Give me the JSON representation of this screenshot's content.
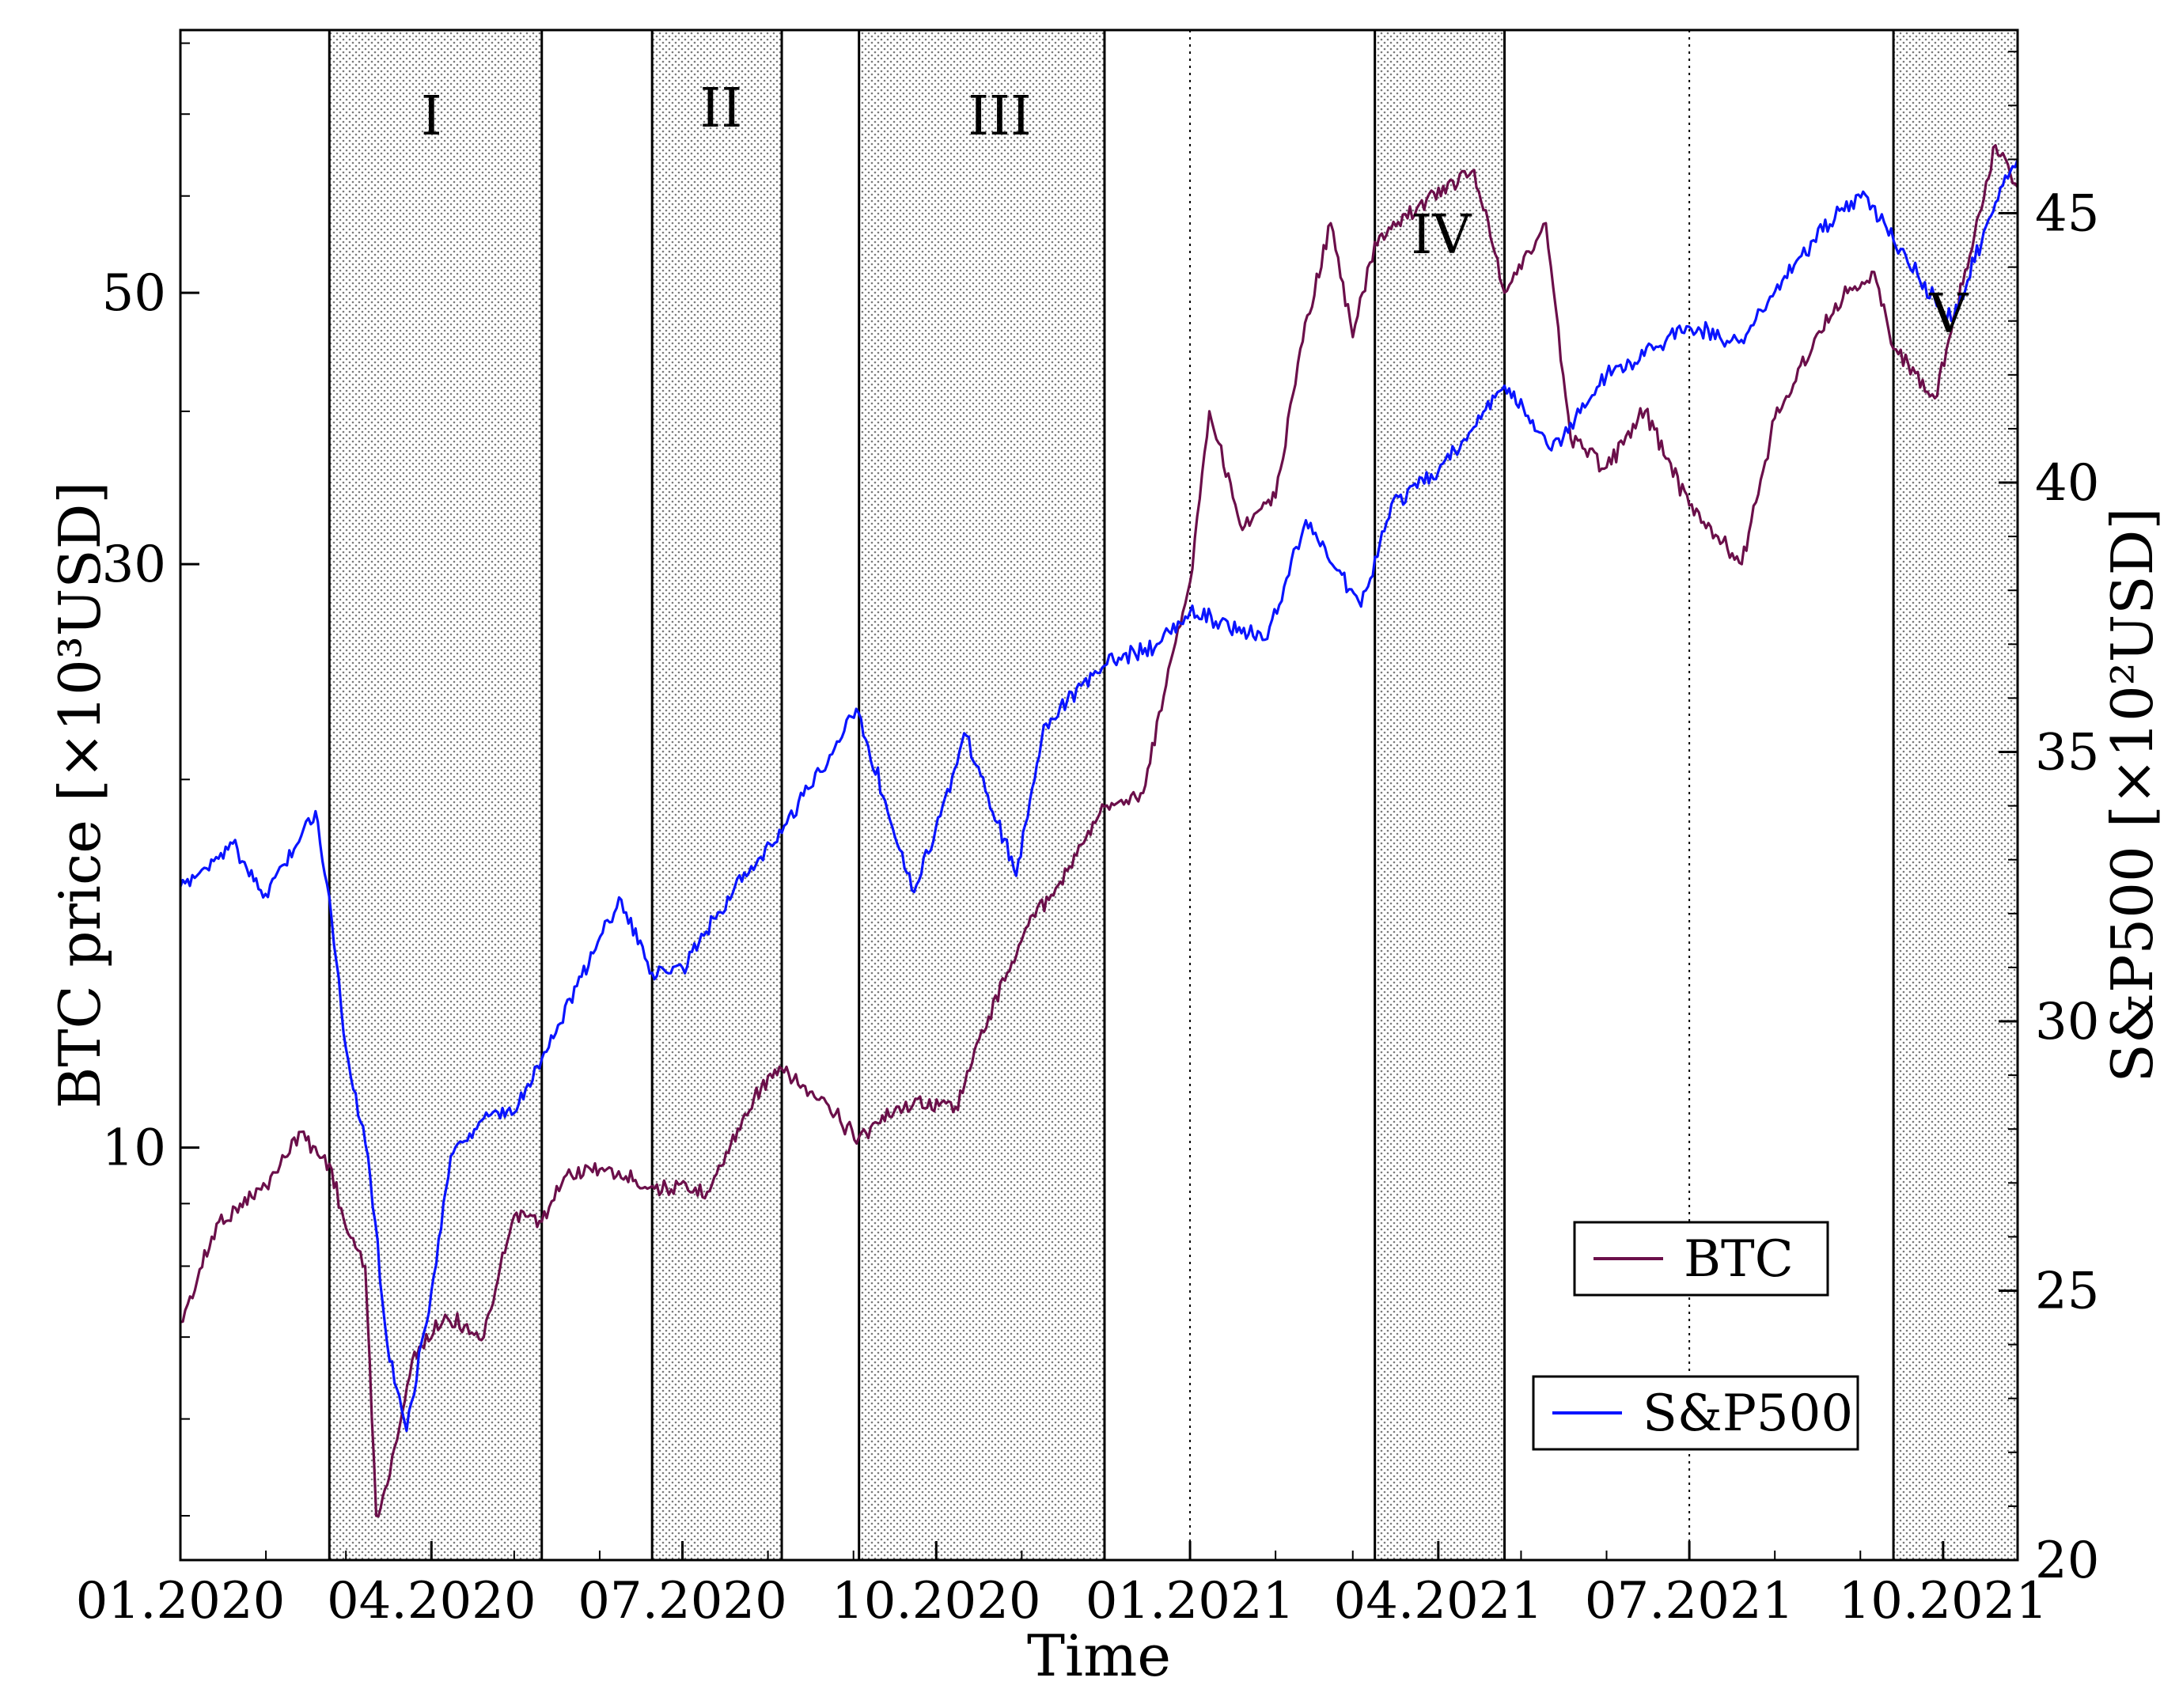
{
  "chart_data": {
    "type": "line",
    "xlabel": "Time",
    "ylabel_left": "BTC price [×10³USD]",
    "ylabel_right": "S&P500 [×10²USD]",
    "x_ticks": [
      "01.2020",
      "04.2020",
      "07.2020",
      "10.2020",
      "01.2021",
      "04.2021",
      "07.2021",
      "10.2021"
    ],
    "x_range": [
      "2020-01-01",
      "2021-10-28"
    ],
    "y_left": {
      "scale": "log",
      "range": [
        4.6,
        82
      ],
      "ticks": [
        10,
        30,
        50
      ]
    },
    "y_right": {
      "scale": "linear",
      "range": [
        20,
        48.4
      ],
      "ticks": [
        20,
        25,
        30,
        35,
        40,
        45
      ]
    },
    "vertical_reference_lines": [
      "2021-01-01",
      "2021-07-01"
    ],
    "shaded_periods": [
      {
        "label": "I",
        "start": "2020-02-24",
        "end": "2020-05-11"
      },
      {
        "label": "II",
        "start": "2020-06-20",
        "end": "2020-08-06"
      },
      {
        "label": "III",
        "start": "2020-09-03",
        "end": "2020-12-01"
      },
      {
        "label": "IV",
        "start": "2021-03-09",
        "end": "2021-04-25"
      },
      {
        "label": "V",
        "start": "2021-09-13",
        "end": "2021-10-28"
      }
    ],
    "legend": [
      {
        "name": "BTC",
        "color": "#6b0f4a"
      },
      {
        "name": "S&P500",
        "color": "#0a14ff"
      }
    ],
    "series": [
      {
        "name": "BTC",
        "axis": "left",
        "color": "#6b0f4a",
        "points": [
          [
            "2020-01-01",
            7.2
          ],
          [
            "2020-01-15",
            8.7
          ],
          [
            "2020-02-01",
            9.3
          ],
          [
            "2020-02-13",
            10.3
          ],
          [
            "2020-02-24",
            9.7
          ],
          [
            "2020-03-01",
            8.6
          ],
          [
            "2020-03-08",
            8.0
          ],
          [
            "2020-03-12",
            5.0
          ],
          [
            "2020-03-16",
            5.3
          ],
          [
            "2020-03-25",
            6.7
          ],
          [
            "2020-04-06",
            7.3
          ],
          [
            "2020-04-20",
            7.0
          ],
          [
            "2020-05-01",
            8.8
          ],
          [
            "2020-05-11",
            8.7
          ],
          [
            "2020-05-20",
            9.5
          ],
          [
            "2020-06-01",
            9.6
          ],
          [
            "2020-06-20",
            9.3
          ],
          [
            "2020-07-10",
            9.2
          ],
          [
            "2020-07-27",
            11.0
          ],
          [
            "2020-08-06",
            11.6
          ],
          [
            "2020-09-03",
            10.2
          ],
          [
            "2020-09-20",
            10.9
          ],
          [
            "2020-10-08",
            10.8
          ],
          [
            "2020-10-20",
            12.8
          ],
          [
            "2020-11-05",
            15.5
          ],
          [
            "2020-11-15",
            16.5
          ],
          [
            "2020-12-01",
            19.0
          ],
          [
            "2020-12-15",
            19.5
          ],
          [
            "2020-12-25",
            25.0
          ],
          [
            "2021-01-01",
            29.0
          ],
          [
            "2021-01-08",
            40.0
          ],
          [
            "2021-01-20",
            32.0
          ],
          [
            "2021-02-01",
            34.0
          ],
          [
            "2021-02-10",
            45.0
          ],
          [
            "2021-02-21",
            57.0
          ],
          [
            "2021-03-01",
            46.0
          ],
          [
            "2021-03-09",
            55.0
          ],
          [
            "2021-03-20",
            58.0
          ],
          [
            "2021-04-14",
            63.0
          ],
          [
            "2021-04-25",
            50.0
          ],
          [
            "2021-05-10",
            57.0
          ],
          [
            "2021-05-19",
            38.0
          ],
          [
            "2021-06-01",
            36.0
          ],
          [
            "2021-06-15",
            40.0
          ],
          [
            "2021-07-01",
            33.5
          ],
          [
            "2021-07-20",
            30.0
          ],
          [
            "2021-08-01",
            39.5
          ],
          [
            "2021-08-23",
            49.0
          ],
          [
            "2021-09-06",
            52.0
          ],
          [
            "2021-09-13",
            45.0
          ],
          [
            "2021-09-28",
            41.0
          ],
          [
            "2021-10-20",
            66.0
          ],
          [
            "2021-10-28",
            61.0
          ]
        ]
      },
      {
        "name": "S&P500",
        "axis": "right",
        "color": "#0a14ff",
        "points": [
          [
            "2020-01-01",
            32.5
          ],
          [
            "2020-01-20",
            33.3
          ],
          [
            "2020-01-31",
            32.3
          ],
          [
            "2020-02-19",
            33.9
          ],
          [
            "2020-02-24",
            32.3
          ],
          [
            "2020-03-01",
            29.5
          ],
          [
            "2020-03-09",
            27.5
          ],
          [
            "2020-03-16",
            24.0
          ],
          [
            "2020-03-23",
            22.4
          ],
          [
            "2020-04-01",
            25.0
          ],
          [
            "2020-04-08",
            27.5
          ],
          [
            "2020-04-20",
            28.2
          ],
          [
            "2020-05-01",
            28.3
          ],
          [
            "2020-05-11",
            29.3
          ],
          [
            "2020-06-08",
            32.3
          ],
          [
            "2020-06-20",
            30.9
          ],
          [
            "2020-07-01",
            31.0
          ],
          [
            "2020-07-20",
            32.5
          ],
          [
            "2020-08-06",
            33.5
          ],
          [
            "2020-09-02",
            35.8
          ],
          [
            "2020-09-23",
            32.4
          ],
          [
            "2020-10-12",
            35.3
          ],
          [
            "2020-10-30",
            32.7
          ],
          [
            "2020-11-09",
            35.5
          ],
          [
            "2020-12-01",
            36.6
          ],
          [
            "2020-12-20",
            37.0
          ],
          [
            "2021-01-01",
            37.6
          ],
          [
            "2021-01-29",
            37.1
          ],
          [
            "2021-02-12",
            39.3
          ],
          [
            "2021-03-04",
            37.7
          ],
          [
            "2021-03-15",
            39.6
          ],
          [
            "2021-04-01",
            40.2
          ],
          [
            "2021-04-25",
            41.8
          ],
          [
            "2021-05-12",
            40.6
          ],
          [
            "2021-06-01",
            42.0
          ],
          [
            "2021-06-30",
            42.9
          ],
          [
            "2021-07-19",
            42.6
          ],
          [
            "2021-08-15",
            44.5
          ],
          [
            "2021-09-02",
            45.4
          ],
          [
            "2021-09-13",
            44.5
          ],
          [
            "2021-10-04",
            43.0
          ],
          [
            "2021-10-20",
            45.2
          ],
          [
            "2021-10-28",
            46.0
          ]
        ]
      }
    ]
  }
}
